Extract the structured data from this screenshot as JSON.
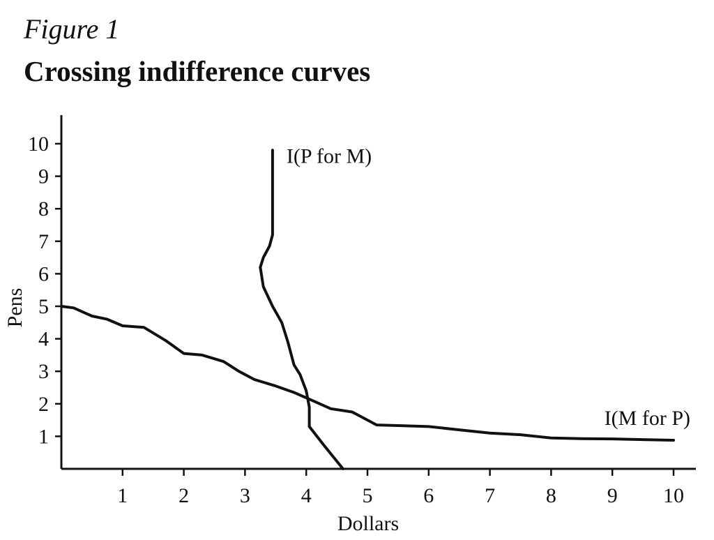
{
  "figure_label": "Figure 1",
  "chart_data": {
    "type": "line",
    "title": "Crossing indifference curves",
    "xlabel": "Dollars",
    "ylabel": "Pens",
    "xlim": [
      0,
      10.3
    ],
    "ylim": [
      0,
      10.9
    ],
    "xticks": [
      1,
      2,
      3,
      4,
      5,
      6,
      7,
      8,
      9,
      10
    ],
    "yticks": [
      1,
      2,
      3,
      4,
      5,
      6,
      7,
      8,
      9,
      10
    ],
    "grid": false,
    "series": [
      {
        "name": "I(P for M)",
        "x": [
          3.45,
          3.45,
          3.45,
          3.4,
          3.3,
          3.25,
          3.3,
          3.45,
          3.6,
          3.7,
          3.8,
          3.9,
          4.0,
          4.05,
          4.05,
          4.3,
          4.6
        ],
        "y": [
          9.8,
          8.5,
          7.2,
          6.85,
          6.5,
          6.2,
          5.6,
          5.0,
          4.5,
          3.9,
          3.2,
          2.9,
          2.4,
          1.9,
          1.3,
          0.7,
          0.0
        ]
      },
      {
        "name": "I(M for P)",
        "x": [
          0.0,
          0.2,
          0.5,
          0.75,
          1.0,
          1.35,
          1.7,
          2.0,
          2.3,
          2.65,
          2.9,
          3.15,
          3.5,
          3.8,
          4.1,
          4.4,
          4.75,
          5.15,
          5.5,
          6.0,
          6.5,
          7.0,
          7.5,
          8.0,
          8.5,
          9.0,
          9.5,
          10.0
        ],
        "y": [
          5.0,
          4.95,
          4.7,
          4.6,
          4.4,
          4.35,
          3.95,
          3.55,
          3.5,
          3.3,
          3.0,
          2.75,
          2.55,
          2.35,
          2.1,
          1.85,
          1.75,
          1.35,
          1.33,
          1.3,
          1.2,
          1.1,
          1.05,
          0.95,
          0.93,
          0.92,
          0.9,
          0.88
        ]
      }
    ]
  }
}
